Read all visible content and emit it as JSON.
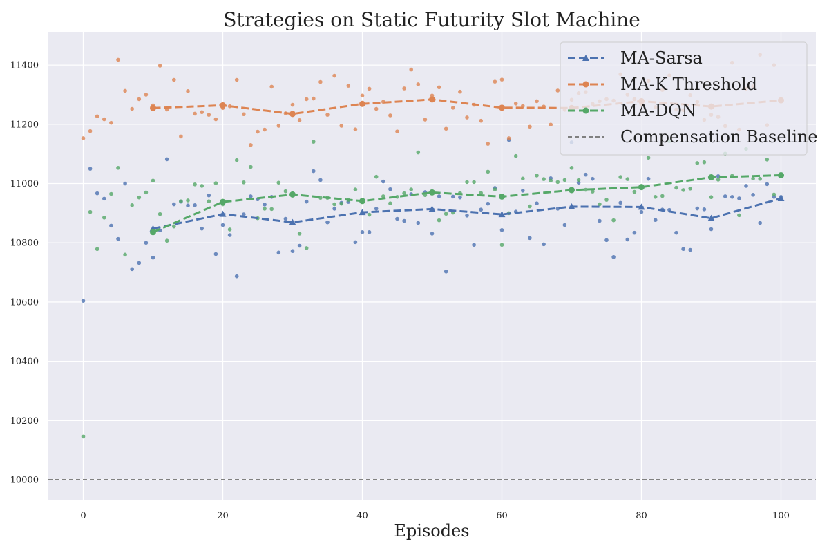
{
  "chart_data": {
    "type": "line",
    "title": "Strategies on Static Futurity Slot Machine",
    "xlabel": "Episodes",
    "ylabel": "",
    "xlim": [
      -5,
      105
    ],
    "ylim": [
      9930,
      11510
    ],
    "xticks": [
      0,
      20,
      40,
      60,
      80,
      100
    ],
    "yticks": [
      10000,
      10200,
      10400,
      10600,
      10800,
      11000,
      11200,
      11400
    ],
    "grid": true,
    "legend_position": "top-right",
    "series": [
      {
        "name": "MA-Sarsa",
        "color": "#4c72b0",
        "marker": "triangle",
        "x": [
          10,
          20,
          30,
          40,
          50,
          60,
          70,
          80,
          90,
          100
        ],
        "y": [
          10848,
          10897,
          10869,
          10903,
          10914,
          10896,
          10922,
          10921,
          10883,
          10950
        ],
        "scatter": [
          [
            0,
            10604
          ],
          [
            1,
            11050
          ],
          [
            2,
            10967
          ],
          [
            3,
            10949
          ],
          [
            4,
            10858
          ],
          [
            5,
            10813
          ],
          [
            6,
            11000
          ],
          [
            7,
            10711
          ],
          [
            8,
            10732
          ],
          [
            9,
            10800
          ],
          [
            10,
            10750
          ],
          [
            11,
            10842
          ],
          [
            12,
            11082
          ],
          [
            13,
            10930
          ],
          [
            14,
            10939
          ],
          [
            15,
            10926
          ],
          [
            16,
            10927
          ],
          [
            17,
            10848
          ],
          [
            18,
            10960
          ],
          [
            19,
            10762
          ],
          [
            20,
            10860
          ],
          [
            21,
            10826
          ],
          [
            22,
            10687
          ],
          [
            23,
            10896
          ],
          [
            24,
            10957
          ],
          [
            25,
            10947
          ],
          [
            26,
            10929
          ],
          [
            27,
            10955
          ],
          [
            28,
            10767
          ],
          [
            29,
            10881
          ],
          [
            30,
            10772
          ],
          [
            31,
            10790
          ],
          [
            32,
            10939
          ],
          [
            33,
            11042
          ],
          [
            34,
            11012
          ],
          [
            35,
            10869
          ],
          [
            36,
            10915
          ],
          [
            37,
            10935
          ],
          [
            38,
            10938
          ],
          [
            39,
            10802
          ],
          [
            40,
            10836
          ],
          [
            41,
            10836
          ],
          [
            42,
            10915
          ],
          [
            43,
            11007
          ],
          [
            44,
            10981
          ],
          [
            45,
            10881
          ],
          [
            46,
            10874
          ],
          [
            47,
            10964
          ],
          [
            48,
            10867
          ],
          [
            49,
            10971
          ],
          [
            50,
            10831
          ],
          [
            51,
            10957
          ],
          [
            52,
            10703
          ],
          [
            53,
            10956
          ],
          [
            54,
            10953
          ],
          [
            55,
            10892
          ],
          [
            56,
            10793
          ],
          [
            57,
            10912
          ],
          [
            58,
            10932
          ],
          [
            59,
            10985
          ],
          [
            60,
            10843
          ],
          [
            61,
            11147
          ],
          [
            62,
            10905
          ],
          [
            63,
            10976
          ],
          [
            64,
            10816
          ],
          [
            65,
            10933
          ],
          [
            66,
            10795
          ],
          [
            67,
            11018
          ],
          [
            68,
            10915
          ],
          [
            69,
            10860
          ],
          [
            70,
            11139
          ],
          [
            71,
            11003
          ],
          [
            72,
            11030
          ],
          [
            73,
            11016
          ],
          [
            74,
            10874
          ],
          [
            75,
            10809
          ],
          [
            76,
            10752
          ],
          [
            77,
            10935
          ],
          [
            78,
            10811
          ],
          [
            79,
            10834
          ],
          [
            80,
            10904
          ],
          [
            81,
            11016
          ],
          [
            82,
            10877
          ],
          [
            83,
            10912
          ],
          [
            84,
            10911
          ],
          [
            85,
            10834
          ],
          [
            86,
            10779
          ],
          [
            87,
            10776
          ],
          [
            88,
            10916
          ],
          [
            89,
            10913
          ],
          [
            90,
            10846
          ],
          [
            91,
            11025
          ],
          [
            92,
            10957
          ],
          [
            93,
            10955
          ],
          [
            94,
            10950
          ],
          [
            95,
            10992
          ],
          [
            96,
            10962
          ],
          [
            97,
            10867
          ],
          [
            98,
            10998
          ],
          [
            99,
            10955
          ],
          [
            100,
            10955
          ]
        ]
      },
      {
        "name": "MA-K Threshold",
        "color": "#dd8452",
        "marker": "circle",
        "x": [
          10,
          20,
          30,
          40,
          50,
          60,
          70,
          80,
          90,
          100
        ],
        "y": [
          11255,
          11264,
          11235,
          11269,
          11284,
          11256,
          11255,
          11278,
          11260,
          11281
        ],
        "scatter": [
          [
            0,
            11153
          ],
          [
            1,
            11177
          ],
          [
            2,
            11227
          ],
          [
            3,
            11217
          ],
          [
            4,
            11205
          ],
          [
            5,
            11418
          ],
          [
            6,
            11313
          ],
          [
            7,
            11252
          ],
          [
            8,
            11285
          ],
          [
            9,
            11300
          ],
          [
            10,
            11264
          ],
          [
            11,
            11398
          ],
          [
            12,
            11250
          ],
          [
            13,
            11350
          ],
          [
            14,
            11159
          ],
          [
            15,
            11312
          ],
          [
            16,
            11236
          ],
          [
            17,
            11241
          ],
          [
            18,
            11232
          ],
          [
            19,
            11217
          ],
          [
            20,
            11255
          ],
          [
            21,
            11261
          ],
          [
            22,
            11350
          ],
          [
            23,
            11234
          ],
          [
            24,
            11130
          ],
          [
            25,
            11175
          ],
          [
            26,
            11182
          ],
          [
            27,
            11327
          ],
          [
            28,
            11195
          ],
          [
            29,
            11237
          ],
          [
            30,
            11266
          ],
          [
            31,
            11214
          ],
          [
            32,
            11285
          ],
          [
            33,
            11287
          ],
          [
            34,
            11343
          ],
          [
            35,
            11232
          ],
          [
            36,
            11364
          ],
          [
            37,
            11195
          ],
          [
            38,
            11330
          ],
          [
            39,
            11183
          ],
          [
            40,
            11297
          ],
          [
            41,
            11320
          ],
          [
            42,
            11252
          ],
          [
            43,
            11276
          ],
          [
            44,
            11230
          ],
          [
            45,
            11176
          ],
          [
            46,
            11321
          ],
          [
            47,
            11385
          ],
          [
            48,
            11335
          ],
          [
            49,
            11216
          ],
          [
            50,
            11297
          ],
          [
            51,
            11325
          ],
          [
            52,
            11185
          ],
          [
            53,
            11256
          ],
          [
            54,
            11310
          ],
          [
            55,
            11223
          ],
          [
            56,
            11266
          ],
          [
            57,
            11212
          ],
          [
            58,
            11134
          ],
          [
            59,
            11344
          ],
          [
            60,
            11351
          ],
          [
            61,
            11153
          ],
          [
            62,
            11270
          ],
          [
            63,
            11262
          ],
          [
            64,
            11192
          ],
          [
            65,
            11278
          ],
          [
            66,
            11260
          ],
          [
            67,
            11199
          ],
          [
            68,
            11314
          ],
          [
            69,
            11249
          ],
          [
            70,
            11283
          ],
          [
            71,
            11305
          ],
          [
            72,
            11309
          ],
          [
            73,
            11269
          ],
          [
            74,
            11278
          ],
          [
            75,
            11285
          ],
          [
            76,
            11280
          ],
          [
            77,
            11369
          ],
          [
            78,
            11300
          ],
          [
            79,
            11285
          ],
          [
            80,
            11266
          ],
          [
            81,
            11346
          ],
          [
            82,
            11258
          ],
          [
            83,
            11316
          ],
          [
            84,
            11365
          ],
          [
            85,
            11250
          ],
          [
            86,
            11248
          ],
          [
            87,
            11298
          ],
          [
            88,
            11276
          ],
          [
            89,
            11215
          ],
          [
            90,
            11232
          ],
          [
            91,
            11225
          ],
          [
            92,
            11194
          ],
          [
            93,
            11408
          ],
          [
            94,
            11182
          ],
          [
            95,
            11320
          ],
          [
            96,
            11328
          ],
          [
            97,
            11435
          ],
          [
            98,
            11197
          ],
          [
            99,
            11400
          ],
          [
            100,
            11282
          ]
        ]
      },
      {
        "name": "MA-DQN",
        "color": "#55a868",
        "marker": "circle",
        "x": [
          10,
          20,
          30,
          40,
          50,
          60,
          70,
          80,
          90,
          100
        ],
        "y": [
          10836,
          10938,
          10963,
          10941,
          10970,
          10956,
          10978,
          10988,
          11021,
          11028
        ],
        "scatter": [
          [
            0,
            10146
          ],
          [
            1,
            10904
          ],
          [
            2,
            10779
          ],
          [
            3,
            10885
          ],
          [
            4,
            10965
          ],
          [
            5,
            11053
          ],
          [
            6,
            10760
          ],
          [
            7,
            10927
          ],
          [
            8,
            10953
          ],
          [
            9,
            10970
          ],
          [
            10,
            11010
          ],
          [
            11,
            10897
          ],
          [
            12,
            10807
          ],
          [
            13,
            10855
          ],
          [
            14,
            10940
          ],
          [
            15,
            10943
          ],
          [
            16,
            10997
          ],
          [
            17,
            10992
          ],
          [
            18,
            10940
          ],
          [
            19,
            11001
          ],
          [
            20,
            10930
          ],
          [
            21,
            10845
          ],
          [
            22,
            11079
          ],
          [
            23,
            11004
          ],
          [
            24,
            11056
          ],
          [
            25,
            10883
          ],
          [
            26,
            10915
          ],
          [
            27,
            10914
          ],
          [
            28,
            11003
          ],
          [
            29,
            10974
          ],
          [
            30,
            10963
          ],
          [
            31,
            10831
          ],
          [
            32,
            10782
          ],
          [
            33,
            11141
          ],
          [
            34,
            10952
          ],
          [
            35,
            10952
          ],
          [
            36,
            10930
          ],
          [
            37,
            10932
          ],
          [
            38,
            10945
          ],
          [
            39,
            10980
          ],
          [
            40,
            10944
          ],
          [
            41,
            10895
          ],
          [
            42,
            11023
          ],
          [
            43,
            10957
          ],
          [
            44,
            10933
          ],
          [
            45,
            10955
          ],
          [
            46,
            10967
          ],
          [
            47,
            10980
          ],
          [
            48,
            11105
          ],
          [
            49,
            10961
          ],
          [
            50,
            10971
          ],
          [
            51,
            10876
          ],
          [
            52,
            10898
          ],
          [
            53,
            10902
          ],
          [
            54,
            10968
          ],
          [
            55,
            11005
          ],
          [
            56,
            11005
          ],
          [
            57,
            10968
          ],
          [
            58,
            11040
          ],
          [
            59,
            10980
          ],
          [
            60,
            10793
          ],
          [
            61,
            10900
          ],
          [
            62,
            11093
          ],
          [
            63,
            11017
          ],
          [
            64,
            10923
          ],
          [
            65,
            11027
          ],
          [
            66,
            11015
          ],
          [
            67,
            11010
          ],
          [
            68,
            11005
          ],
          [
            69,
            11012
          ],
          [
            70,
            11053
          ],
          [
            71,
            11012
          ],
          [
            72,
            10979
          ],
          [
            73,
            10973
          ],
          [
            74,
            10930
          ],
          [
            75,
            10945
          ],
          [
            76,
            10876
          ],
          [
            77,
            11022
          ],
          [
            78,
            11015
          ],
          [
            79,
            10972
          ],
          [
            80,
            10987
          ],
          [
            81,
            11087
          ],
          [
            82,
            10955
          ],
          [
            83,
            10958
          ],
          [
            84,
            11143
          ],
          [
            85,
            10986
          ],
          [
            86,
            10978
          ],
          [
            87,
            10983
          ],
          [
            88,
            11069
          ],
          [
            89,
            11072
          ],
          [
            90,
            10954
          ],
          [
            91,
            11013
          ],
          [
            92,
            11101
          ],
          [
            93,
            11026
          ],
          [
            94,
            10893
          ],
          [
            95,
            11117
          ],
          [
            96,
            11017
          ],
          [
            97,
            11016
          ],
          [
            98,
            11081
          ],
          [
            99,
            10963
          ],
          [
            100,
            11028
          ]
        ]
      },
      {
        "name": "Compensation Baseline",
        "color": "#808080",
        "marker": "none",
        "constant": 10000
      }
    ]
  }
}
